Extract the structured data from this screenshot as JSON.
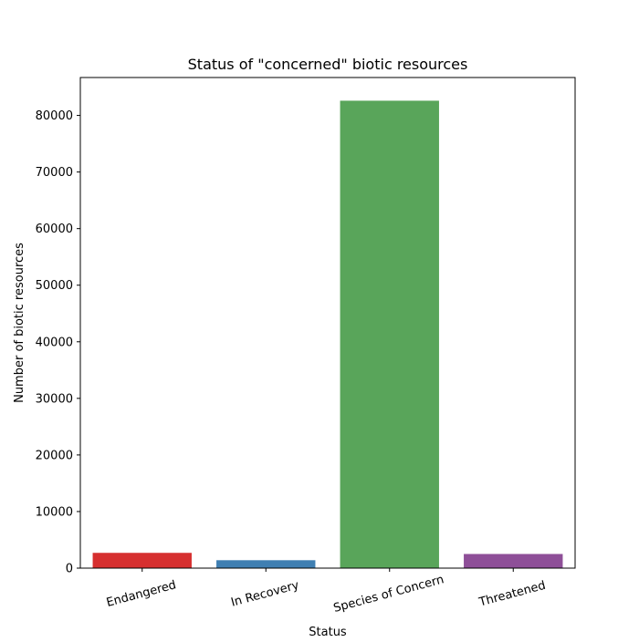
{
  "chart_data": {
    "type": "bar",
    "title": "Status of \"concerned\" biotic resources",
    "xlabel": "Status",
    "ylabel": "Number of biotic resources",
    "categories": [
      "Endangered",
      "In Recovery",
      "Species of Concern",
      "Threatened"
    ],
    "values": [
      2700,
      1400,
      82600,
      2500
    ],
    "colors": [
      "#d62f2f",
      "#3f7fb2",
      "#59a55a",
      "#8e4f98"
    ],
    "ylim": [
      0,
      86700
    ],
    "yticks": [
      0,
      10000,
      20000,
      30000,
      40000,
      50000,
      60000,
      70000,
      80000
    ],
    "ytick_labels": [
      "0",
      "10000",
      "20000",
      "30000",
      "40000",
      "50000",
      "60000",
      "70000",
      "80000"
    ],
    "grid": false,
    "legend": "none"
  }
}
